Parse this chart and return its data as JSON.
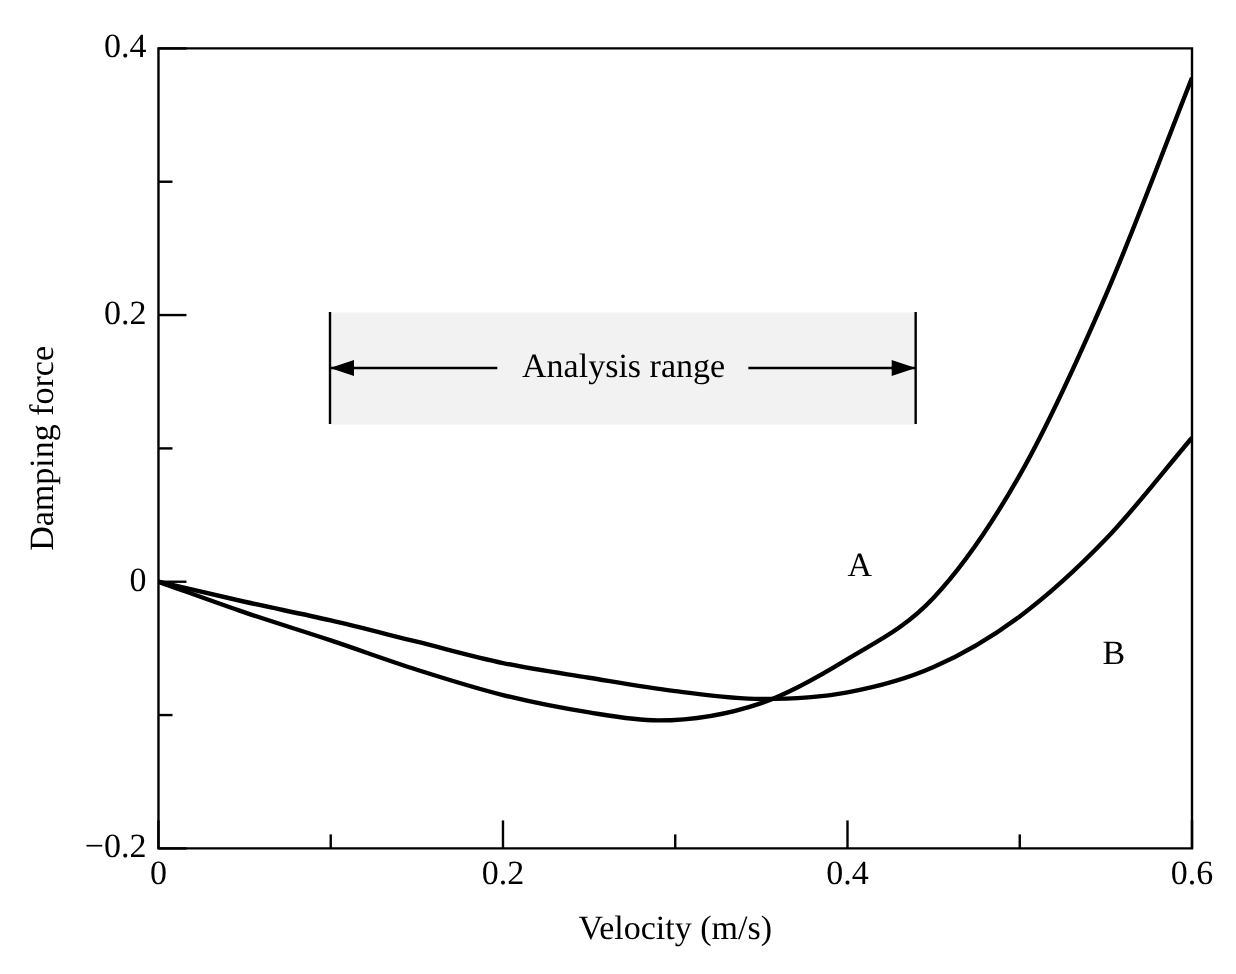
{
  "chart_data": {
    "type": "line",
    "xlabel": "Velocity (m/s)",
    "ylabel": "Damping force",
    "xlim": [
      0,
      0.6
    ],
    "ylim": [
      -0.2,
      0.4
    ],
    "xticks": [
      0,
      {
        "value": 0.1,
        "label": null
      },
      0.2,
      {
        "value": 0.3,
        "label": null
      },
      0.4,
      {
        "value": 0.5,
        "label": null
      },
      0.6
    ],
    "yticks": [
      {
        "value": -0.2,
        "label": "−0.2"
      },
      {
        "value": -0.1,
        "label": null
      },
      0,
      {
        "value": 0.1,
        "label": null
      },
      0.2,
      {
        "value": 0.3,
        "label": null
      },
      0.4
    ],
    "grid": false,
    "legend": false,
    "marker": "none",
    "line_style": "solid",
    "series": [
      {
        "name": "A",
        "color": "#000000",
        "x": [
          0,
          0.05,
          0.1,
          0.15,
          0.2,
          0.25,
          0.29,
          0.35,
          0.4,
          0.45,
          0.5,
          0.55,
          0.6
        ],
        "values": [
          0,
          -0.023,
          -0.044,
          -0.066,
          -0.085,
          -0.098,
          -0.104,
          -0.091,
          -0.058,
          -0.012,
          0.08,
          0.215,
          0.378
        ]
      },
      {
        "name": "B",
        "color": "#000000",
        "x": [
          0,
          0.05,
          0.1,
          0.15,
          0.2,
          0.25,
          0.3,
          0.35,
          0.4,
          0.45,
          0.5,
          0.55,
          0.6
        ],
        "values": [
          0,
          -0.015,
          -0.029,
          -0.045,
          -0.061,
          -0.072,
          -0.082,
          -0.088,
          -0.083,
          -0.064,
          -0.026,
          0.032,
          0.108
        ]
      }
    ],
    "bands": [
      {
        "axis": "x",
        "from": 0.1,
        "to": 0.44,
        "label": "Analysis range",
        "color": "#f2f2f2"
      }
    ]
  }
}
